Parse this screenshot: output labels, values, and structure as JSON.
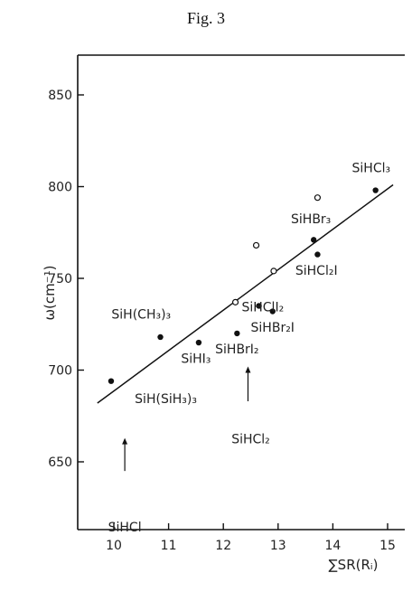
{
  "figure": {
    "title": "Fig. 3"
  },
  "chart_data": {
    "type": "scatter",
    "title": "",
    "xlabel": "∑SR(Rᵢ)",
    "ylabel": "ω(cm⁻¹)",
    "xlim": [
      9.5,
      15.4
    ],
    "ylim": [
      600,
      870
    ],
    "x_ticks": [
      "10",
      "11",
      "12",
      "13",
      "14",
      "15"
    ],
    "y_ticks": [
      "650",
      "700",
      "750",
      "800",
      "850"
    ],
    "x_tick_values": [
      10,
      11,
      12,
      13,
      14,
      15
    ],
    "y_tick_values": [
      650,
      700,
      750,
      800,
      850
    ],
    "grid": false,
    "series": [
      {
        "marker": "filled",
        "points": [
          {
            "x": 9.95,
            "y": 694
          },
          {
            "x": 10.85,
            "y": 718
          },
          {
            "x": 11.55,
            "y": 715
          },
          {
            "x": 12.25,
            "y": 720
          },
          {
            "x": 12.65,
            "y": 735
          },
          {
            "x": 12.9,
            "y": 732
          },
          {
            "x": 13.65,
            "y": 771
          },
          {
            "x": 13.72,
            "y": 763
          },
          {
            "x": 14.78,
            "y": 798
          }
        ]
      },
      {
        "marker": "open",
        "points": [
          {
            "x": 12.22,
            "y": 737
          },
          {
            "x": 12.6,
            "y": 768
          },
          {
            "x": 12.92,
            "y": 754
          },
          {
            "x": 13.72,
            "y": 794
          }
        ]
      }
    ],
    "fit_line": {
      "x": [
        9.7,
        15.1
      ],
      "y": [
        682,
        801
      ]
    },
    "annotations": [
      {
        "text": "SiHCl₃",
        "x": 14.7,
        "y": 808
      },
      {
        "text": "SiHBr₃",
        "x": 13.6,
        "y": 780
      },
      {
        "text": "SiHCl₂I",
        "x": 13.7,
        "y": 752
      },
      {
        "text": "SiHClI₂",
        "x": 12.72,
        "y": 732
      },
      {
        "text": "SiHBr₂I",
        "x": 12.9,
        "y": 721
      },
      {
        "text": "SiH(CH₃)₃",
        "x": 10.5,
        "y": 728
      },
      {
        "text": "SiHI₃",
        "x": 11.5,
        "y": 704
      },
      {
        "text": "SiHBrI₂",
        "x": 12.25,
        "y": 709
      },
      {
        "text": "SiH(SiH₃)₃",
        "x": 10.95,
        "y": 682
      },
      {
        "text": "SiHCl₂",
        "x": 12.5,
        "y": 660
      },
      {
        "text": "SiHCl",
        "x": 10.2,
        "y": 612
      }
    ],
    "arrows": [
      {
        "label": "SiHCl",
        "x": 10.2,
        "from_y": 645,
        "to_y": 663
      },
      {
        "label": "SiHCl₂",
        "x": 12.45,
        "from_y": 683,
        "to_y": 702
      }
    ]
  }
}
